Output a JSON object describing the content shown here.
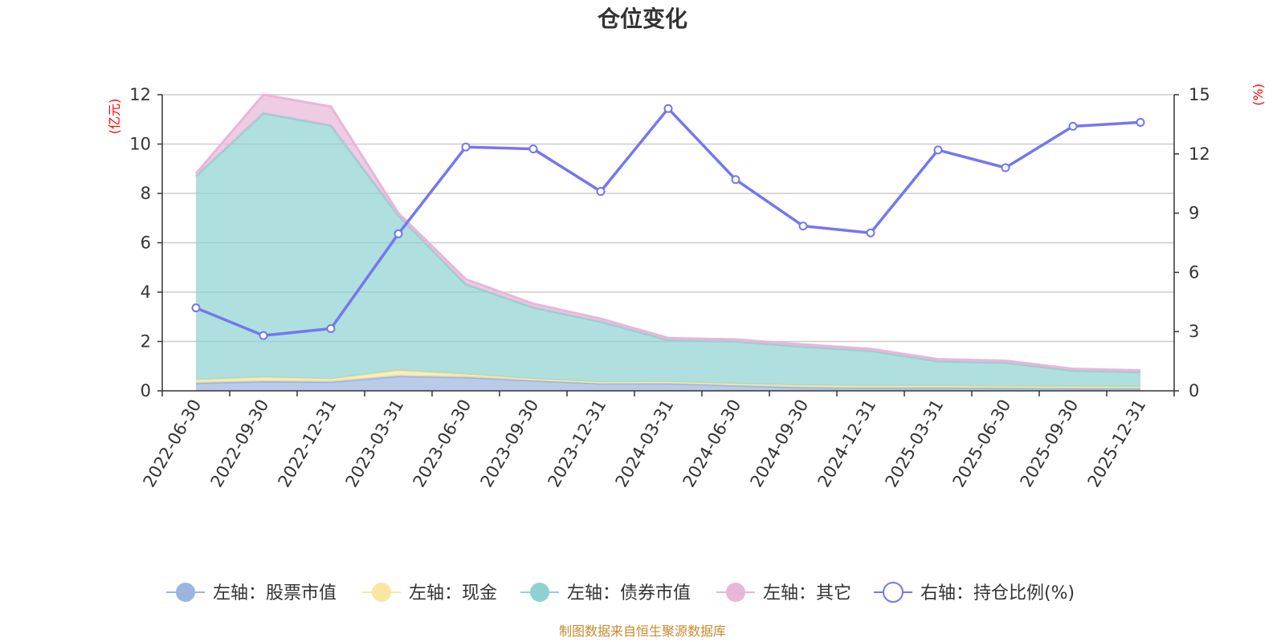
{
  "title": "仓位变化",
  "source_note": "制图数据来自恒生聚源数据库",
  "colors": {
    "stock": "#9bb5e0",
    "cash": "#fae6a0",
    "bond": "#8fd1d1",
    "other": "#e8b6d8",
    "ratio": "#7377f0",
    "axis_name": "#ff0000",
    "source": "#c9892b"
  },
  "chart_data": {
    "type": "area",
    "title": "仓位变化",
    "categories": [
      "2022-06-30",
      "2022-09-30",
      "2022-12-31",
      "2023-03-31",
      "2023-06-30",
      "2023-09-30",
      "2023-12-31",
      "2024-03-31",
      "2024-06-30",
      "2024-09-30",
      "2024-12-31",
      "2025-03-31",
      "2025-06-30",
      "2025-09-30",
      "2025-12-31"
    ],
    "left_axis": {
      "name": "(亿元)",
      "min": 0,
      "max": 12,
      "ticks": [
        0,
        2,
        4,
        6,
        8,
        10,
        12
      ]
    },
    "right_axis": {
      "name": "(%)",
      "min": 0,
      "max": 15,
      "ticks": [
        0,
        3,
        6,
        9,
        12,
        15
      ]
    },
    "stacked": true,
    "grid": true,
    "legend_position": "bottom",
    "series": [
      {
        "key": "stock",
        "name": "左轴：股票市值",
        "axis": "left",
        "type": "area",
        "values": [
          0.32,
          0.38,
          0.36,
          0.6,
          0.55,
          0.42,
          0.3,
          0.3,
          0.22,
          0.14,
          0.12,
          0.13,
          0.12,
          0.1,
          0.1
        ]
      },
      {
        "key": "cash",
        "name": "左轴：现金",
        "axis": "left",
        "type": "area",
        "values": [
          0.13,
          0.17,
          0.12,
          0.23,
          0.12,
          0.06,
          0.05,
          0.06,
          0.06,
          0.08,
          0.08,
          0.07,
          0.06,
          0.07,
          0.06
        ]
      },
      {
        "key": "bond",
        "name": "左轴：债券市值",
        "axis": "left",
        "type": "area",
        "values": [
          8.25,
          10.7,
          10.27,
          6.27,
          3.65,
          2.9,
          2.45,
          1.7,
          1.72,
          1.57,
          1.42,
          1.0,
          0.96,
          0.65,
          0.6
        ]
      },
      {
        "key": "other",
        "name": "左轴：其它",
        "axis": "left",
        "type": "area",
        "values": [
          0.1,
          0.75,
          0.77,
          0.1,
          0.2,
          0.15,
          0.12,
          0.08,
          0.08,
          0.09,
          0.08,
          0.08,
          0.08,
          0.07,
          0.07
        ]
      },
      {
        "key": "ratio",
        "name": "右轴：持仓比例(%)",
        "axis": "right",
        "type": "line",
        "values": [
          4.2,
          2.8,
          3.15,
          7.95,
          12.35,
          12.25,
          10.1,
          14.3,
          10.7,
          8.35,
          8.0,
          12.2,
          11.3,
          13.4,
          13.6
        ]
      }
    ]
  }
}
